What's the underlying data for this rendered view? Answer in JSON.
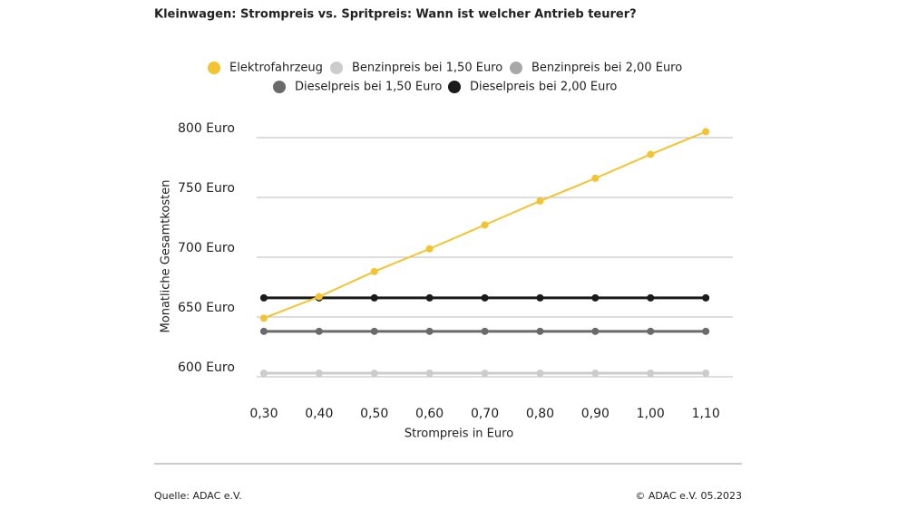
{
  "chart_data": {
    "type": "line",
    "title": "Kleinwagen: Strompreis vs. Spritpreis: Wann ist welcher Antrieb teurer?",
    "x_label": "Strompreis in Euro",
    "y_label": "Monatliche Gesamtkosten",
    "x": [
      {
        "value": 0.3,
        "label": "0,30"
      },
      {
        "value": 0.4,
        "label": "0,40"
      },
      {
        "value": 0.5,
        "label": "0,50"
      },
      {
        "value": 0.6,
        "label": "0,60"
      },
      {
        "value": 0.7,
        "label": "0,70"
      },
      {
        "value": 0.8,
        "label": "0,80"
      },
      {
        "value": 0.9,
        "label": "0,90"
      },
      {
        "value": 1.0,
        "label": "1,00"
      },
      {
        "value": 1.1,
        "label": "1,10"
      }
    ],
    "xlim": [
      0.287,
      1.149
    ],
    "ylim": [
      600,
      800
    ],
    "yticks": [
      {
        "value": 600,
        "label": "600 Euro"
      },
      {
        "value": 650,
        "label": "650 Euro"
      },
      {
        "value": 700,
        "label": "700 Euro"
      },
      {
        "value": 750,
        "label": "750 Euro"
      },
      {
        "value": 800,
        "label": "800 Euro"
      }
    ],
    "grid": true,
    "series": [
      {
        "name": "Elektrofahrzeug",
        "color": "#f4c430",
        "values": [
          649,
          667,
          688,
          707,
          727,
          747,
          766,
          786,
          805
        ]
      },
      {
        "name": "Benzinpreis bei 1,50 Euro",
        "color": "#cccccc",
        "values": [
          603,
          603,
          603,
          603,
          603,
          603,
          603,
          603,
          603
        ]
      },
      {
        "name": "Benzinpreis bei 2,00 Euro",
        "color": "#a8a8a8",
        "values": [
          null,
          null,
          null,
          null,
          null,
          null,
          null,
          null,
          null
        ]
      },
      {
        "name": "Dieselpreis bei 1,50 Euro",
        "color": "#6a6a6a",
        "values": [
          638,
          638,
          638,
          638,
          638,
          638,
          638,
          638,
          638
        ]
      },
      {
        "name": "Dieselpreis bei 2,00 Euro",
        "color": "#1a1a1a",
        "values": [
          666,
          666,
          666,
          666,
          666,
          666,
          666,
          666,
          666
        ]
      }
    ],
    "source": "Quelle: ADAC e.V.",
    "copyright": "© ADAC e.V. 05.2023"
  }
}
